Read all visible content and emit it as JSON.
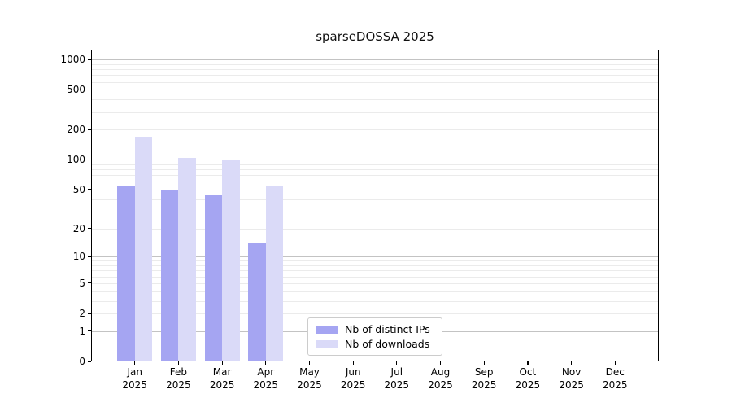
{
  "chart_data": {
    "type": "bar",
    "title": "sparseDOSSA 2025",
    "x_axis": {
      "categories": [
        "Jan 2025",
        "Feb 2025",
        "Mar 2025",
        "Apr 2025",
        "May 2025",
        "Jun 2025",
        "Jul 2025",
        "Aug 2025",
        "Sep 2025",
        "Oct 2025",
        "Nov 2025",
        "Dec 2025"
      ]
    },
    "y_axis": {
      "scale": "log1p",
      "ticks": [
        0,
        1,
        2,
        5,
        10,
        20,
        50,
        100,
        200,
        500,
        1000
      ],
      "range": [
        0,
        1255
      ],
      "grid": "horizontal major + minor"
    },
    "series": [
      {
        "name": "Nb of distinct IPs",
        "color": "#a5a5f2",
        "values": [
          55,
          49,
          44,
          14,
          0,
          0,
          0,
          0,
          0,
          0,
          0,
          0
        ]
      },
      {
        "name": "Nb of downloads",
        "color": "#dadaf8",
        "values": [
          170,
          105,
          100,
          55,
          0,
          0,
          0,
          0,
          0,
          0,
          0,
          0
        ]
      }
    ],
    "legend_position": "lower center"
  },
  "colors": {
    "major_grid": "#c3c3c3",
    "minor_grid": "#ebebeb",
    "spine": "#000000"
  }
}
